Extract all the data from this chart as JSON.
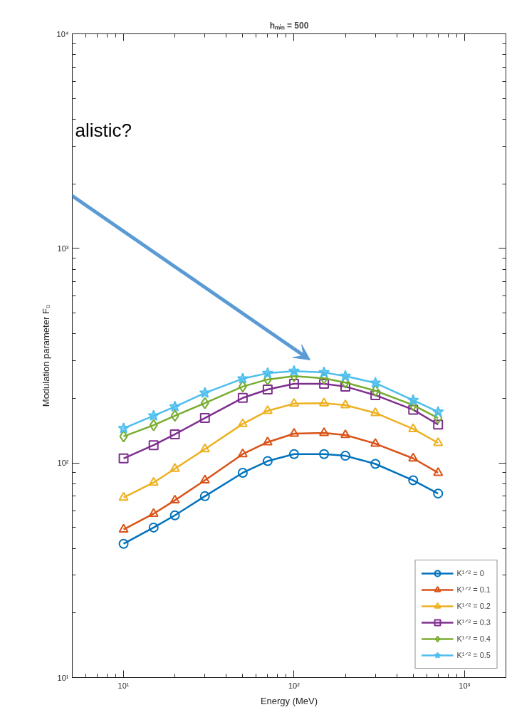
{
  "chart_data": {
    "type": "line",
    "title": "hₘᵢₙ = 500",
    "xlabel": "Energy (MeV)",
    "ylabel": "Modulation parameter F₀",
    "log": "xy",
    "grid": false,
    "legend": "bottom right",
    "line_style": "solid",
    "xlim": [
      5,
      1750
    ],
    "ylim": [
      10,
      10000
    ],
    "xticks": [
      {
        "value": 10,
        "label": "10¹"
      },
      {
        "value": 100,
        "label": "10²"
      },
      {
        "value": 1000,
        "label": "10³"
      }
    ],
    "yticks": [
      {
        "value": 10,
        "label": "10¹"
      },
      {
        "value": 100,
        "label": "10²"
      },
      {
        "value": 1000,
        "label": "10³"
      },
      {
        "value": 10000,
        "label": "10⁴"
      }
    ],
    "x": [
      10,
      15,
      20,
      30,
      50,
      70,
      100,
      150,
      200,
      300,
      500,
      700
    ],
    "annotations": [
      "alistic?"
    ],
    "series": [
      {
        "name": "K¹ᐟ² = 0",
        "color": "#0072bd",
        "marker": "circle",
        "values": [
          42,
          50,
          57,
          70,
          90,
          102,
          110,
          110,
          108,
          99,
          83,
          72
        ]
      },
      {
        "name": "K¹ᐟ² = 0.1",
        "color": "#d95319",
        "marker": "triangle",
        "values": [
          49,
          58,
          67,
          83,
          110,
          125,
          137,
          138,
          135,
          123,
          105,
          90
        ]
      },
      {
        "name": "K¹ᐟ² = 0.2",
        "color": "#edb120",
        "marker": "triangle",
        "values": [
          69,
          81,
          94,
          116,
          152,
          175,
          189,
          190,
          186,
          171,
          144,
          124
        ]
      },
      {
        "name": "K¹ᐟ² = 0.3",
        "color": "#7e2f8e",
        "marker": "square",
        "values": [
          105,
          121,
          136,
          162,
          201,
          220,
          234,
          234,
          227,
          207,
          177,
          151
        ]
      },
      {
        "name": "K¹ᐟ² = 0.4",
        "color": "#77ac30",
        "marker": "diamond",
        "values": [
          133,
          150,
          166,
          190,
          227,
          245,
          254,
          248,
          237,
          217,
          186,
          162
        ]
      },
      {
        "name": "K¹ᐟ² = 0.5",
        "color": "#4dbeee",
        "marker": "star",
        "values": [
          145,
          166,
          183,
          212,
          247,
          262,
          268,
          264,
          254,
          236,
          196,
          173
        ]
      }
    ]
  }
}
